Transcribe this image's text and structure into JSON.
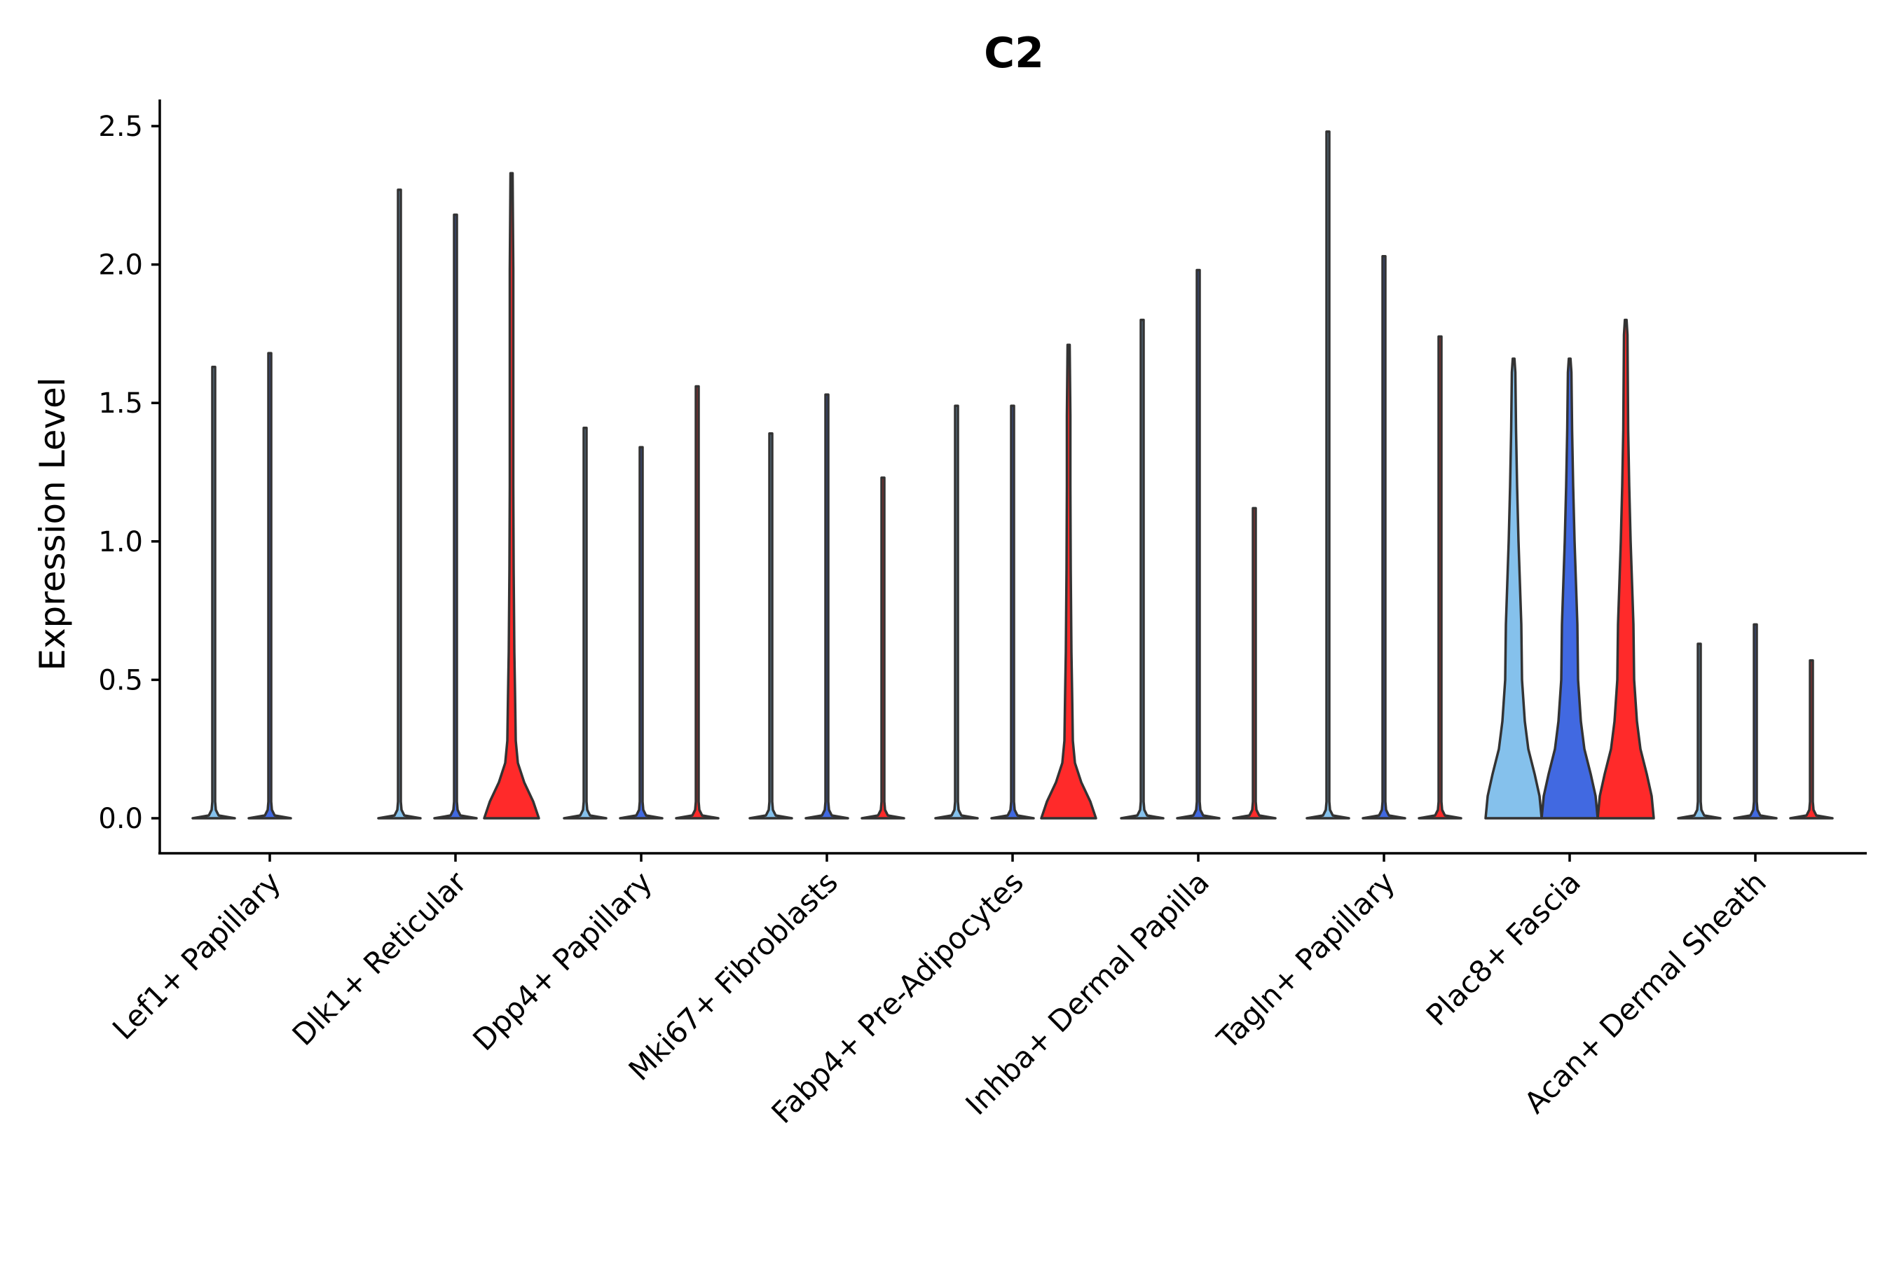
{
  "chart_data": {
    "type": "violin",
    "title": "C2",
    "xlabel": "",
    "ylabel": "Expression Level",
    "ylim": [
      -0.12,
      2.6
    ],
    "yticks": [
      0.0,
      0.5,
      1.0,
      1.5,
      2.0,
      2.5
    ],
    "ytick_labels": [
      "0.0",
      "0.5",
      "1.0",
      "1.5",
      "2.0",
      "2.5"
    ],
    "categories": [
      "Lef1+ Papillary",
      "Dlk1+ Reticular",
      "Dpp4+ Papillary",
      "Mki67+ Fibroblasts",
      "Fabp4+ Pre-Adipocytes",
      "Inhba+ Dermal Papilla",
      "Tagln+ Papillary",
      "Plac8+ Fascia",
      "Acan+ Dermal Sheath"
    ],
    "series_colors": {
      "group1": "#85C1EC",
      "group2": "#4169E1",
      "group3": "#FF2A2A"
    },
    "violins": [
      {
        "category": "Lef1+ Papillary",
        "group": 1,
        "color": "#85C1EC",
        "max": 1.63,
        "shape": "flat"
      },
      {
        "category": "Lef1+ Papillary",
        "group": 2,
        "color": "#4169E1",
        "max": 1.68,
        "shape": "flat"
      },
      {
        "category": "Dlk1+ Reticular",
        "group": 1,
        "color": "#85C1EC",
        "max": 2.27,
        "shape": "flat"
      },
      {
        "category": "Dlk1+ Reticular",
        "group": 2,
        "color": "#4169E1",
        "max": 2.18,
        "shape": "flat"
      },
      {
        "category": "Dlk1+ Reticular",
        "group": 3,
        "color": "#FF2A2A",
        "max": 2.33,
        "shape": "low"
      },
      {
        "category": "Dpp4+ Papillary",
        "group": 1,
        "color": "#85C1EC",
        "max": 1.41,
        "shape": "flat"
      },
      {
        "category": "Dpp4+ Papillary",
        "group": 2,
        "color": "#4169E1",
        "max": 1.34,
        "shape": "flat"
      },
      {
        "category": "Dpp4+ Papillary",
        "group": 3,
        "color": "#FF2A2A",
        "max": 1.56,
        "shape": "flat"
      },
      {
        "category": "Mki67+ Fibroblasts",
        "group": 1,
        "color": "#85C1EC",
        "max": 1.39,
        "shape": "flat"
      },
      {
        "category": "Mki67+ Fibroblasts",
        "group": 2,
        "color": "#4169E1",
        "max": 1.53,
        "shape": "flat"
      },
      {
        "category": "Mki67+ Fibroblasts",
        "group": 3,
        "color": "#FF2A2A",
        "max": 1.23,
        "shape": "flat"
      },
      {
        "category": "Fabp4+ Pre-Adipocytes",
        "group": 1,
        "color": "#85C1EC",
        "max": 1.49,
        "shape": "flat"
      },
      {
        "category": "Fabp4+ Pre-Adipocytes",
        "group": 2,
        "color": "#4169E1",
        "max": 1.49,
        "shape": "flat"
      },
      {
        "category": "Fabp4+ Pre-Adipocytes",
        "group": 3,
        "color": "#FF2A2A",
        "max": 1.71,
        "shape": "low"
      },
      {
        "category": "Inhba+ Dermal Papilla",
        "group": 1,
        "color": "#85C1EC",
        "max": 1.8,
        "shape": "flat"
      },
      {
        "category": "Inhba+ Dermal Papilla",
        "group": 2,
        "color": "#4169E1",
        "max": 1.98,
        "shape": "flat"
      },
      {
        "category": "Inhba+ Dermal Papilla",
        "group": 3,
        "color": "#FF2A2A",
        "max": 1.12,
        "shape": "flat"
      },
      {
        "category": "Tagln+ Papillary",
        "group": 1,
        "color": "#85C1EC",
        "max": 2.48,
        "shape": "flat"
      },
      {
        "category": "Tagln+ Papillary",
        "group": 2,
        "color": "#4169E1",
        "max": 2.03,
        "shape": "flat"
      },
      {
        "category": "Tagln+ Papillary",
        "group": 3,
        "color": "#FF2A2A",
        "max": 1.74,
        "shape": "flat"
      },
      {
        "category": "Plac8+ Fascia",
        "group": 1,
        "color": "#85C1EC",
        "max": 1.66,
        "shape": "wide"
      },
      {
        "category": "Plac8+ Fascia",
        "group": 2,
        "color": "#4169E1",
        "max": 1.66,
        "shape": "wide"
      },
      {
        "category": "Plac8+ Fascia",
        "group": 3,
        "color": "#FF2A2A",
        "max": 1.8,
        "shape": "wide"
      },
      {
        "category": "Acan+ Dermal Sheath",
        "group": 1,
        "color": "#85C1EC",
        "max": 0.63,
        "shape": "flat"
      },
      {
        "category": "Acan+ Dermal Sheath",
        "group": 2,
        "color": "#4169E1",
        "max": 0.7,
        "shape": "flat"
      },
      {
        "category": "Acan+ Dermal Sheath",
        "group": 3,
        "color": "#FF2A2A",
        "max": 0.57,
        "shape": "flat"
      }
    ],
    "grid": false,
    "legend": "none"
  }
}
